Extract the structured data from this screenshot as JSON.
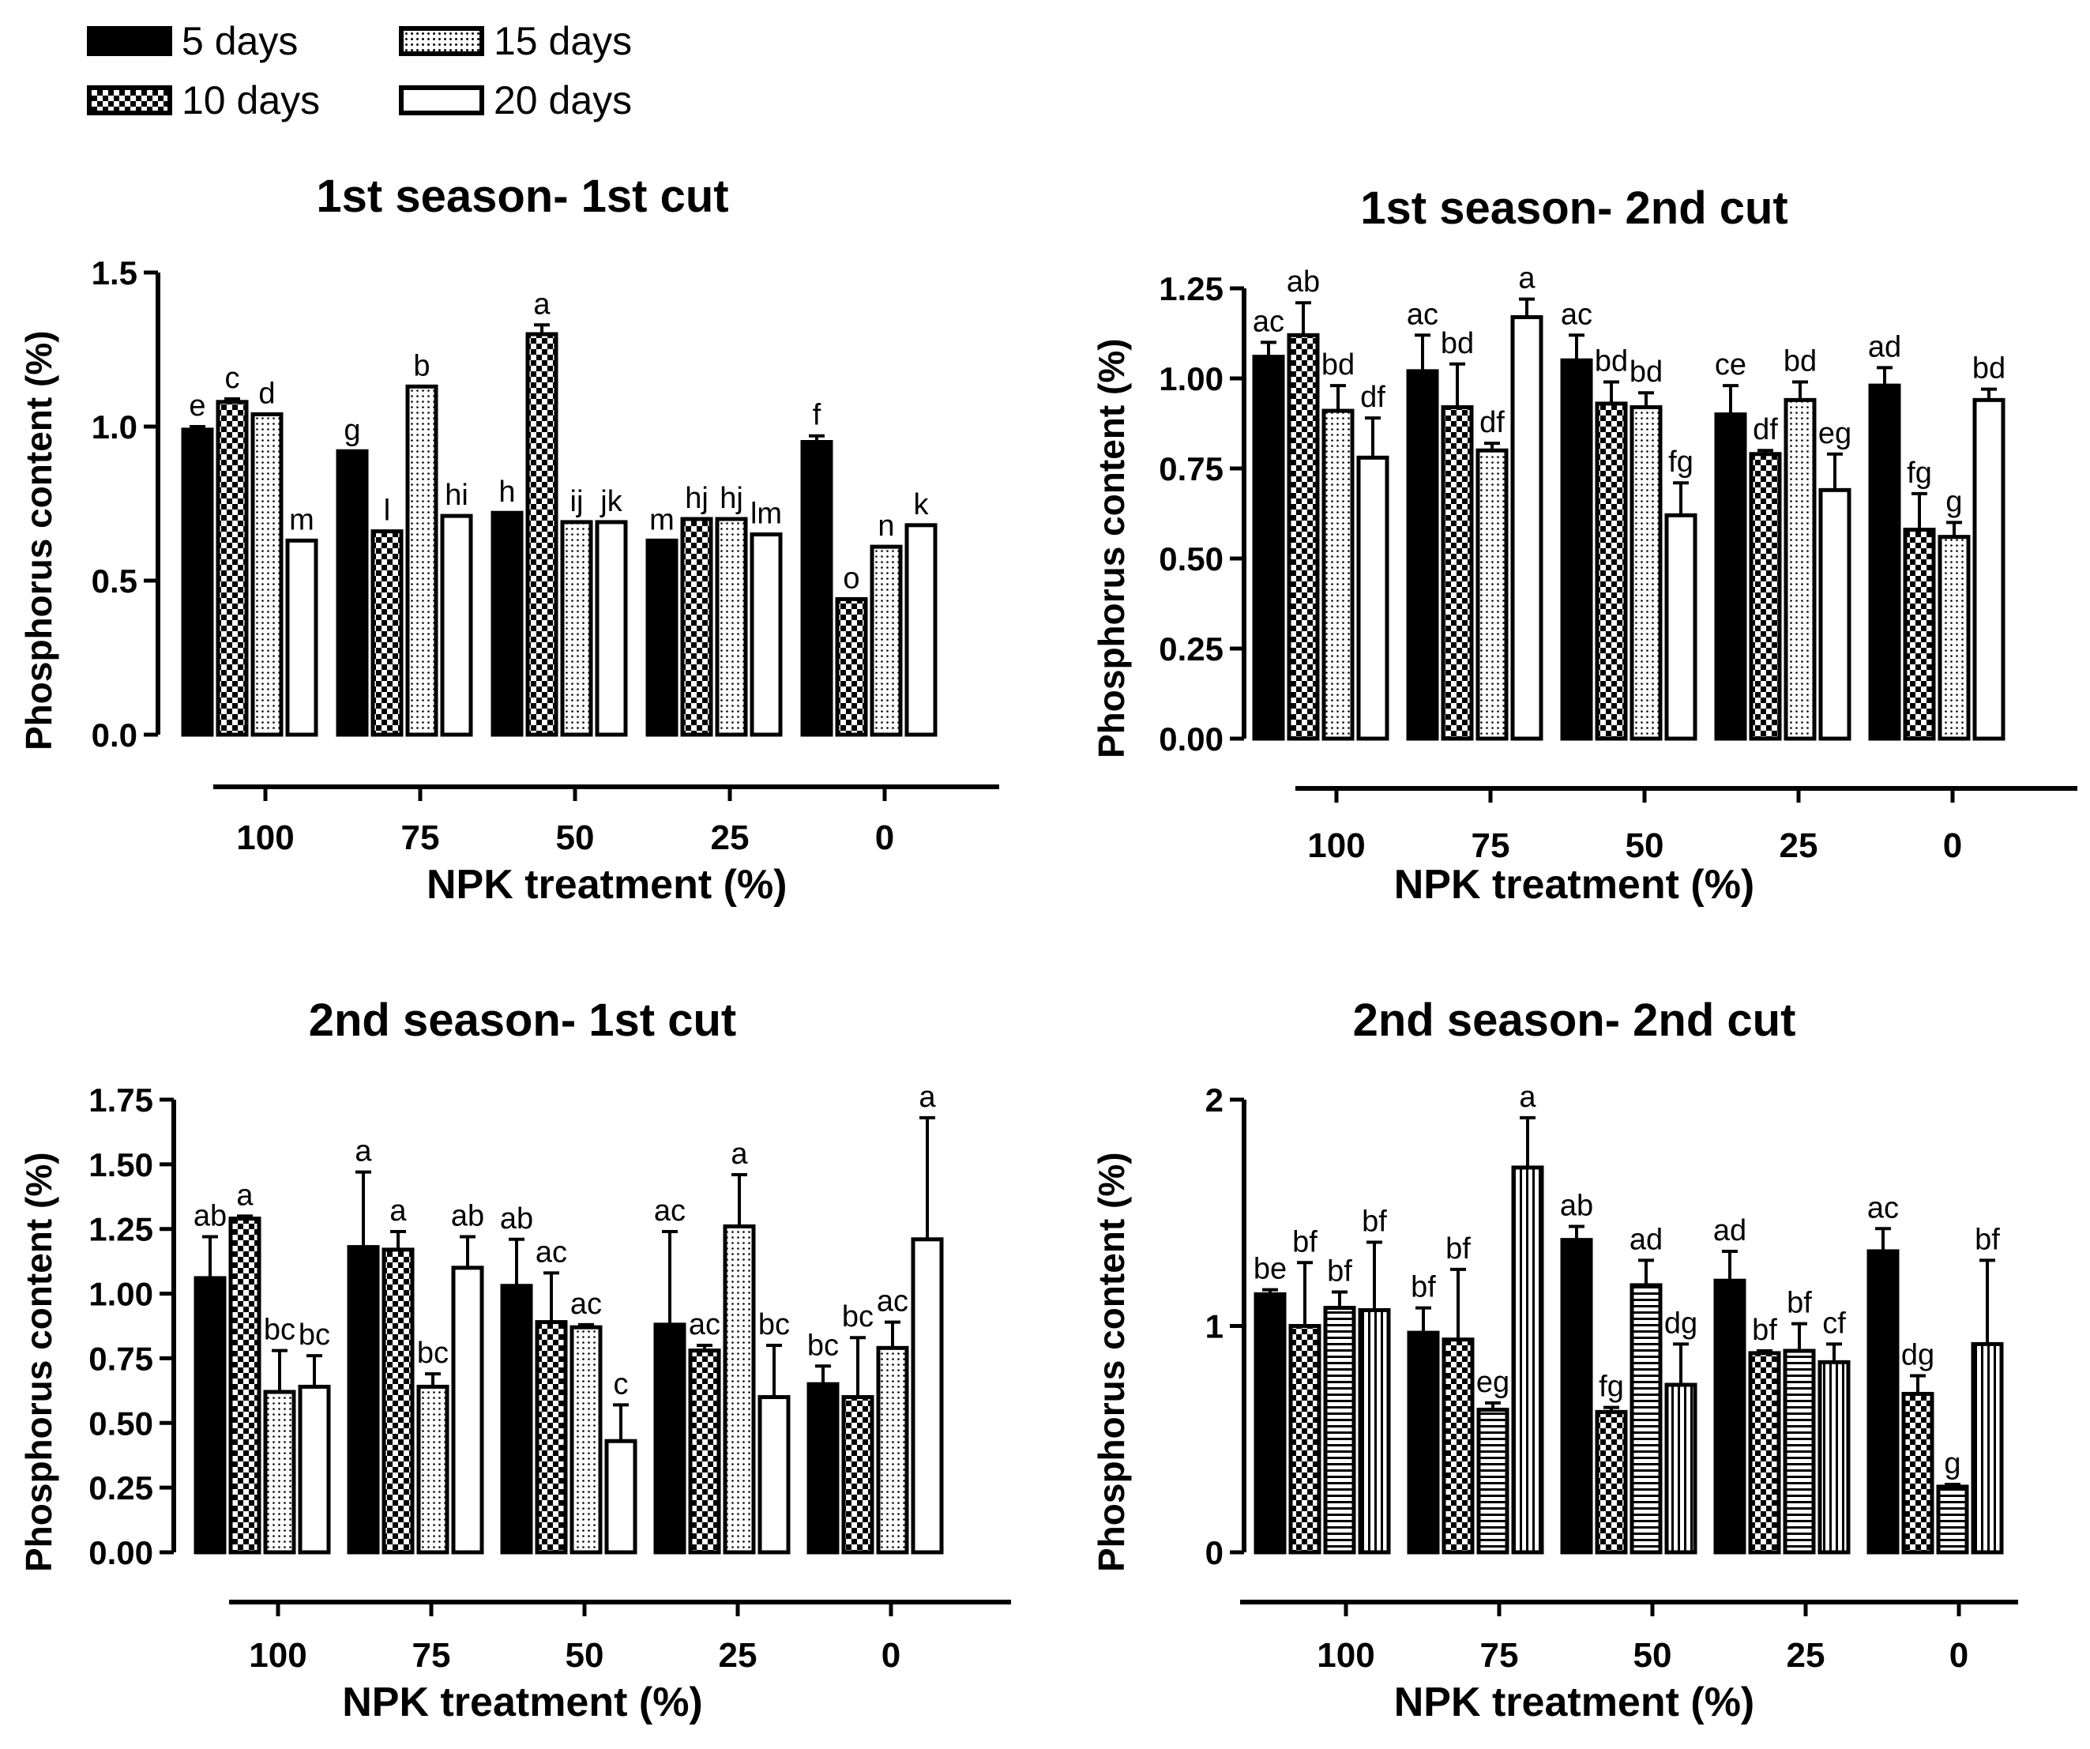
{
  "legend": {
    "items": [
      {
        "label": "5 days",
        "pattern": "solid"
      },
      {
        "label": "10 days",
        "pattern": "checker"
      },
      {
        "label": "15 days",
        "pattern": "dots"
      },
      {
        "label": "20 days",
        "pattern": "open"
      }
    ]
  },
  "colors": {
    "ink": "#000000",
    "background": "#ffffff"
  },
  "chart_data": [
    {
      "type": "bar",
      "title": "1st season- 1st cut",
      "xlabel": "NPK treatment (%)",
      "ylabel": "Phosphorus content (%)",
      "ylim": [
        0,
        1.5
      ],
      "yticks": [
        "0.0",
        "0.5",
        "1.0",
        "1.5"
      ],
      "ytick_values": [
        0,
        0.5,
        1.0,
        1.5
      ],
      "categories": [
        "100",
        "75",
        "50",
        "25",
        "0"
      ],
      "patterns": [
        "solid",
        "checker",
        "dots",
        "open"
      ],
      "series": [
        {
          "name": "5 days",
          "values": [
            0.99,
            0.92,
            0.72,
            0.63,
            0.95
          ],
          "errors": [
            0.01,
            0.0,
            0.0,
            0.0,
            0.02
          ],
          "letters": [
            "e",
            "g",
            "h",
            "m",
            "f"
          ]
        },
        {
          "name": "10 days",
          "values": [
            1.08,
            0.66,
            1.3,
            0.7,
            0.44
          ],
          "errors": [
            0.01,
            0.0,
            0.03,
            0.0,
            0.0
          ],
          "letters": [
            "c",
            "l",
            "a",
            "hj",
            "o"
          ]
        },
        {
          "name": "15 days",
          "values": [
            1.04,
            1.13,
            0.69,
            0.7,
            0.61
          ],
          "errors": [
            0.0,
            0.0,
            0.0,
            0.0,
            0.0
          ],
          "letters": [
            "d",
            "b",
            "ij",
            "hj",
            "n"
          ]
        },
        {
          "name": "20 days",
          "values": [
            0.63,
            0.71,
            0.69,
            0.65,
            0.68
          ],
          "errors": [
            0.0,
            0.0,
            0.0,
            0.0,
            0.0
          ],
          "letters": [
            "m",
            "hi",
            "jk",
            "lm",
            "k"
          ]
        }
      ]
    },
    {
      "type": "bar",
      "title": "1st season- 2nd cut",
      "xlabel": "NPK treatment (%)",
      "ylabel": "Phosphorus content (%)",
      "ylim": [
        0,
        1.25
      ],
      "yticks": [
        "0.00",
        "0.25",
        "0.50",
        "0.75",
        "1.00",
        "1.25"
      ],
      "ytick_values": [
        0,
        0.25,
        0.5,
        0.75,
        1.0,
        1.25
      ],
      "categories": [
        "100",
        "75",
        "50",
        "25",
        "0"
      ],
      "patterns": [
        "solid",
        "checker",
        "dots",
        "open"
      ],
      "series": [
        {
          "name": "5 days",
          "values": [
            1.06,
            1.02,
            1.05,
            0.9,
            0.98
          ],
          "errors": [
            0.04,
            0.1,
            0.07,
            0.08,
            0.05
          ],
          "letters": [
            "ac",
            "ac",
            "ac",
            "ce",
            "ad"
          ]
        },
        {
          "name": "10 days",
          "values": [
            1.12,
            0.92,
            0.93,
            0.79,
            0.58
          ],
          "errors": [
            0.09,
            0.12,
            0.06,
            0.01,
            0.1
          ],
          "letters": [
            "ab",
            "bd",
            "bd",
            "df",
            "fg"
          ]
        },
        {
          "name": "15 days",
          "values": [
            0.91,
            0.8,
            0.92,
            0.94,
            0.56
          ],
          "errors": [
            0.07,
            0.02,
            0.04,
            0.05,
            0.04
          ],
          "letters": [
            "bd",
            "df",
            "bd",
            "bd",
            "g"
          ]
        },
        {
          "name": "20 days",
          "values": [
            0.78,
            1.17,
            0.62,
            0.69,
            0.94
          ],
          "errors": [
            0.11,
            0.05,
            0.09,
            0.1,
            0.03
          ],
          "letters": [
            "df",
            "a",
            "fg",
            "eg",
            "bd"
          ]
        }
      ]
    },
    {
      "type": "bar",
      "title": "2nd season- 1st cut",
      "xlabel": "NPK treatment (%)",
      "ylabel": "Phosphorus content (%)",
      "ylim": [
        0,
        1.75
      ],
      "yticks": [
        "0.00",
        "0.25",
        "0.50",
        "0.75",
        "1.00",
        "1.25",
        "1.50",
        "1.75"
      ],
      "ytick_values": [
        0,
        0.25,
        0.5,
        0.75,
        1.0,
        1.25,
        1.5,
        1.75
      ],
      "categories": [
        "100",
        "75",
        "50",
        "25",
        "0"
      ],
      "patterns": [
        "solid",
        "checker",
        "dots",
        "open"
      ],
      "series": [
        {
          "name": "5 days",
          "values": [
            1.06,
            1.18,
            1.03,
            0.88,
            0.65
          ],
          "errors": [
            0.16,
            0.29,
            0.18,
            0.36,
            0.07
          ],
          "letters": [
            "ab",
            "a",
            "ab",
            "ac",
            "bc"
          ]
        },
        {
          "name": "10 days",
          "values": [
            1.29,
            1.17,
            0.89,
            0.78,
            0.6
          ],
          "errors": [
            0.01,
            0.07,
            0.19,
            0.02,
            0.23
          ],
          "letters": [
            "a",
            "a",
            "ac",
            "ac",
            "bc"
          ]
        },
        {
          "name": "15 days",
          "values": [
            0.62,
            0.64,
            0.87,
            1.26,
            0.79
          ],
          "errors": [
            0.16,
            0.05,
            0.01,
            0.2,
            0.1
          ],
          "letters": [
            "bc",
            "bc",
            "ac",
            "a",
            "ac"
          ]
        },
        {
          "name": "20 days",
          "values": [
            0.64,
            1.1,
            0.43,
            0.6,
            1.21
          ],
          "errors": [
            0.12,
            0.12,
            0.14,
            0.2,
            0.47
          ],
          "letters": [
            "bc",
            "ab",
            "c",
            "bc",
            "a"
          ]
        }
      ]
    },
    {
      "type": "bar",
      "title": "2nd season- 2nd cut",
      "xlabel": "NPK treatment (%)",
      "ylabel": "Phosphorus content (%)",
      "ylim": [
        0,
        2
      ],
      "yticks": [
        "0",
        "1",
        "2"
      ],
      "ytick_values": [
        0,
        1,
        2
      ],
      "categories": [
        "100",
        "75",
        "50",
        "25",
        "0"
      ],
      "patterns": [
        "solid",
        "checker",
        "hstripe",
        "vstripe"
      ],
      "series": [
        {
          "name": "5 days",
          "values": [
            1.14,
            0.97,
            1.38,
            1.2,
            1.33
          ],
          "errors": [
            0.02,
            0.11,
            0.06,
            0.13,
            0.1
          ],
          "letters": [
            "be",
            "bf",
            "ab",
            "ad",
            "ac"
          ]
        },
        {
          "name": "10 days",
          "values": [
            1.0,
            0.94,
            0.62,
            0.88,
            0.7
          ],
          "errors": [
            0.28,
            0.31,
            0.02,
            0.01,
            0.08
          ],
          "letters": [
            "bf",
            "bf",
            "fg",
            "bf",
            "dg"
          ]
        },
        {
          "name": "15 days",
          "values": [
            1.08,
            0.63,
            1.18,
            0.89,
            0.29
          ],
          "errors": [
            0.07,
            0.03,
            0.11,
            0.12,
            0.01
          ],
          "letters": [
            "bf",
            "eg",
            "ad",
            "bf",
            "g"
          ]
        },
        {
          "name": "20 days",
          "values": [
            1.07,
            1.7,
            0.74,
            0.84,
            0.92
          ],
          "errors": [
            0.3,
            0.22,
            0.18,
            0.08,
            0.37
          ],
          "letters": [
            "bf",
            "a",
            "dg",
            "cf",
            "bf"
          ]
        }
      ]
    }
  ]
}
